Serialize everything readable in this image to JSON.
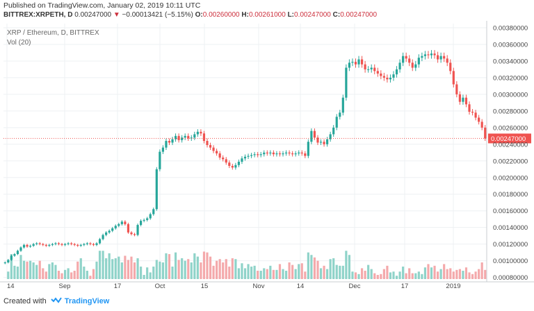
{
  "header": {
    "published": "Published on TradingView.com, January 02, 2019 10:11 UTC",
    "symbol": "BITTREX:XRPETH, D",
    "last": "0.00247000",
    "change": "−0.00013421 (−5.15%)",
    "o_label": "O:",
    "o_value": "0.00260000",
    "h_label": "H:",
    "h_value": "0.00261000",
    "l_label": "L:",
    "l_value": "0.00247000",
    "c_label": "C:",
    "c_value": "0.00247000"
  },
  "overlay": {
    "title": "XRP / Ethereum, D, BITTREX",
    "volume": "Vol (20)"
  },
  "footer": {
    "created": "Created with",
    "brand": "TradingView"
  },
  "colors": {
    "up": "#26a69a",
    "down": "#ef5350",
    "vol_up": "#8fd3c9",
    "vol_down": "#f4a9ab",
    "price_line": "#ef5350",
    "grid": "#eef0f3"
  },
  "chart_data": {
    "type": "candlestick",
    "yaxis_ticks": [
      "0.00380000",
      "0.00360000",
      "0.00340000",
      "0.00320000",
      "0.00300000",
      "0.00280000",
      "0.00260000",
      "0.00240000",
      "0.00220000",
      "0.00200000",
      "0.00180000",
      "0.00160000",
      "0.00140000",
      "0.00120000",
      "0.00100000",
      "0.00080000"
    ],
    "ylim": [
      0.00078,
      0.00385
    ],
    "xaxis_ticks": [
      "14",
      "Sep",
      "17",
      "Oct",
      "15",
      "Nov",
      "14",
      "Dec",
      "17",
      "2019"
    ],
    "last_price_label": "0.00247000",
    "last_price": 0.00247,
    "close": [
      0.00098,
      0.00101,
      0.00106,
      0.00108,
      0.00112,
      0.00116,
      0.00119,
      0.00117,
      0.00118,
      0.0012,
      0.00121,
      0.0012,
      0.00119,
      0.00118,
      0.00119,
      0.0012,
      0.00121,
      0.0012,
      0.00119,
      0.0012,
      0.00121,
      0.0012,
      0.00119,
      0.00118,
      0.00119,
      0.0012,
      0.00121,
      0.0012,
      0.00119,
      0.00121,
      0.00126,
      0.00131,
      0.00134,
      0.00136,
      0.00139,
      0.00142,
      0.00144,
      0.00147,
      0.00144,
      0.00134,
      0.00132,
      0.00131,
      0.00143,
      0.00148,
      0.00149,
      0.00151,
      0.00156,
      0.00162,
      0.0021,
      0.00231,
      0.00236,
      0.00244,
      0.00242,
      0.00246,
      0.0025,
      0.00245,
      0.00248,
      0.0025,
      0.00247,
      0.00248,
      0.00252,
      0.00255,
      0.00253,
      0.00244,
      0.00239,
      0.00236,
      0.00232,
      0.00229,
      0.00224,
      0.00222,
      0.00218,
      0.00214,
      0.00212,
      0.00215,
      0.00219,
      0.00223,
      0.00225,
      0.00226,
      0.00227,
      0.00228,
      0.00227,
      0.00228,
      0.0023,
      0.00229,
      0.0023,
      0.00228,
      0.00229,
      0.00228,
      0.00229,
      0.0023,
      0.00229,
      0.00228,
      0.00229,
      0.0023,
      0.00229,
      0.00226,
      0.00243,
      0.00256,
      0.00248,
      0.00242,
      0.00243,
      0.0024,
      0.00246,
      0.00252,
      0.0026,
      0.00273,
      0.00278,
      0.00296,
      0.00332,
      0.00338,
      0.00339,
      0.00336,
      0.00342,
      0.00336,
      0.0033,
      0.0033,
      0.00332,
      0.00328,
      0.00325,
      0.00322,
      0.0032,
      0.00318,
      0.0032,
      0.00324,
      0.0033,
      0.00338,
      0.00346,
      0.00343,
      0.00338,
      0.00332,
      0.00336,
      0.00344,
      0.00346,
      0.00348,
      0.00347,
      0.00349,
      0.00347,
      0.00342,
      0.00346,
      0.00343,
      0.00338,
      0.00328,
      0.00312,
      0.003,
      0.00291,
      0.00296,
      0.00288,
      0.00279,
      0.00278,
      0.00272,
      0.00267,
      0.0026,
      0.00247
    ],
    "volume": [
      0.00075,
      0.00087,
      0.00108,
      0.00094,
      0.00093,
      0.00107,
      0.001,
      0.00099,
      0.001,
      0.00098,
      0.00095,
      0.001,
      0.00091,
      0.00087,
      0.00096,
      0.00098,
      0.00095,
      0.00088,
      0.00085,
      0.00089,
      0.00091,
      0.00086,
      0.00088,
      0.00099,
      0.00103,
      0.00093,
      0.00088,
      0.00082,
      0.0009,
      0.00099,
      0.00112,
      0.00112,
      0.00103,
      0.00109,
      0.00102,
      0.00103,
      0.00105,
      0.00098,
      0.00106,
      0.00101,
      0.00105,
      0.00098,
      0.00103,
      0.00093,
      0.00083,
      0.00092,
      0.00086,
      0.00093,
      0.00101,
      0.00099,
      0.00098,
      0.00109,
      0.00108,
      0.00093,
      0.0011,
      0.00101,
      0.00103,
      0.001,
      0.00102,
      0.00098,
      0.00109,
      0.00105,
      0.00098,
      0.00111,
      0.0011,
      0.00105,
      0.00094,
      0.001,
      0.00102,
      0.00098,
      0.00102,
      0.00093,
      0.00103,
      0.00102,
      0.00091,
      0.00097,
      0.00091,
      0.00096,
      0.00093,
      0.00094,
      0.00088,
      0.00088,
      0.00091,
      0.0009,
      0.00094,
      0.00089,
      0.00089,
      0.00096,
      0.0009,
      0.00088,
      0.00098,
      0.00095,
      0.0009,
      0.00096,
      0.00097,
      0.00087,
      0.0011,
      0.00107,
      0.00104,
      0.001,
      0.00091,
      0.00094,
      0.0009,
      0.00102,
      0.00103,
      0.00095,
      0.00094,
      0.00094,
      0.00112,
      0.00107,
      0.00087,
      0.00086,
      0.00084,
      0.00091,
      0.00088,
      0.00095,
      0.0009,
      0.00085,
      0.00083,
      0.00084,
      0.0009,
      0.00094,
      0.00086,
      0.00087,
      0.00082,
      0.00087,
      0.00093,
      0.00085,
      0.00091,
      0.00085,
      0.00085,
      0.00087,
      0.00084,
      0.00092,
      0.00096,
      0.00092,
      0.00094,
      0.00087,
      0.0009,
      0.00096,
      0.0009,
      0.00091,
      0.00087,
      0.00089,
      0.0009,
      0.00088,
      0.00092,
      0.00086,
      0.00084,
      0.00087,
      0.0009,
      0.00098,
      0.00089
    ]
  }
}
